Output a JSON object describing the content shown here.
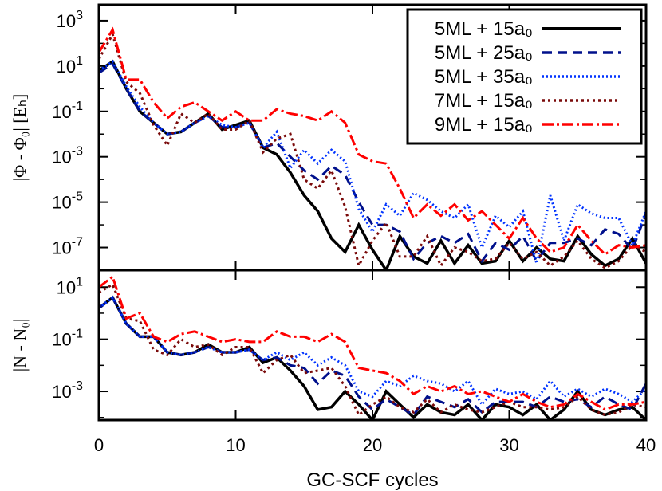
{
  "chart_data": {
    "type": "line",
    "xlabel": "GC-SCF cycles",
    "xlim": [
      0,
      40
    ],
    "xticks": [
      "0",
      "10",
      "20",
      "30",
      "40"
    ],
    "xtick_values": [
      0,
      10,
      20,
      30,
      40
    ],
    "series_styles": [
      {
        "name": "5ML + 15a₀",
        "color": "#000000",
        "dash": ""
      },
      {
        "name": "5ML + 25a₀",
        "color": "#00108c",
        "dash": "12 7"
      },
      {
        "name": "5ML + 35a₀",
        "color": "#0033ff",
        "dash": "2 3"
      },
      {
        "name": "7ML + 15a₀",
        "color": "#7a0a0a",
        "dash": "3 4"
      },
      {
        "name": "9ML + 15a₀",
        "color": "#ff0000",
        "dash": "14 4 3 4"
      }
    ],
    "legend": {
      "placement": "top-right",
      "entries": [
        "5ML + 15a₀",
        "5ML + 25a₀",
        "5ML + 35a₀",
        "7ML + 15a₀",
        "9ML + 15a₀"
      ]
    },
    "panels": [
      {
        "ylabel": "|Φ - Φ₀| [Eₕ]",
        "yscale": "log",
        "ylim_exp": [
          -8,
          3.7
        ],
        "yticks": [
          {
            "base": "10",
            "exp": "3",
            "value_exp": 3
          },
          {
            "base": "10",
            "exp": "1",
            "value_exp": 1
          },
          {
            "base": "10",
            "exp": "-1",
            "value_exp": -1
          },
          {
            "base": "10",
            "exp": "-3",
            "value_exp": -3
          },
          {
            "base": "10",
            "exp": "-5",
            "value_exp": -5
          },
          {
            "base": "10",
            "exp": "-7",
            "value_exp": -7
          }
        ],
        "series_log10": [
          [
            0.8,
            1.2,
            0.0,
            -1.0,
            -1.5,
            -2.0,
            -1.9,
            -1.5,
            -1.1,
            -1.8,
            -1.6,
            -1.4,
            -2.6,
            -2.9,
            -3.7,
            -4.7,
            -5.4,
            -6.6,
            -7.2,
            -6.0,
            -7.1,
            -8.0,
            -6.5,
            -7.4,
            -7.7,
            -6.7,
            -7.7,
            -6.9,
            -7.7,
            -7.6,
            -6.7,
            -7.6,
            -7.0,
            -7.5,
            -7.6,
            -6.5,
            -7.3,
            -7.8,
            -7.5,
            -6.6,
            -7.7
          ],
          [
            0.7,
            1.1,
            0.0,
            -1.0,
            -1.5,
            -2.0,
            -1.9,
            -1.5,
            -1.2,
            -1.7,
            -1.7,
            -1.5,
            -2.6,
            -2.4,
            -3.0,
            -3.6,
            -4.0,
            -3.4,
            -3.8,
            -5.0,
            -6.0,
            -6.0,
            -6.3,
            -7.5,
            -6.8,
            -6.5,
            -6.8,
            -6.4,
            -7.6,
            -6.8,
            -7.1,
            -6.5,
            -7.6,
            -6.8,
            -6.8,
            -6.6,
            -6.9,
            -6.2,
            -6.4,
            -7.1,
            -5.5
          ],
          [
            0.8,
            1.2,
            0.1,
            -0.8,
            -1.5,
            -2.0,
            -1.9,
            -1.5,
            -1.2,
            -1.6,
            -1.7,
            -1.5,
            -2.6,
            -1.9,
            -3.5,
            -2.7,
            -3.3,
            -2.7,
            -3.2,
            -5.3,
            -6.3,
            -5.1,
            -5.6,
            -4.6,
            -4.9,
            -5.4,
            -5.7,
            -5.1,
            -7.0,
            -5.6,
            -6.1,
            -5.4,
            -7.7,
            -4.7,
            -6.7,
            -5.1,
            -5.5,
            -5.7,
            -5.7,
            -6.9,
            -5.4
          ],
          [
            1.3,
            2.4,
            0.3,
            -0.2,
            -1.6,
            -2.5,
            -1.1,
            -1.5,
            -1.1,
            -1.8,
            -1.8,
            -1.4,
            -2.8,
            -2.2,
            -2.0,
            -4.0,
            -4.4,
            -3.6,
            -5.2,
            -7.8,
            -6.7,
            -5.9,
            -7.4,
            -7.4,
            -6.5,
            -7.8,
            -7.0,
            -7.2,
            -7.6,
            -7.5,
            -6.8,
            -7.5,
            -7.2,
            -7.8,
            -7.4,
            -6.7,
            -7.5,
            -7.9,
            -7.6,
            -6.9,
            -7.2
          ],
          [
            1.6,
            2.6,
            0.4,
            0.4,
            -0.6,
            -1.3,
            -0.8,
            -0.6,
            -1.0,
            -1.4,
            -1.0,
            -1.4,
            -1.4,
            -0.9,
            -1.1,
            -1.2,
            -1.4,
            -1.0,
            -1.5,
            -2.9,
            -3.2,
            -3.3,
            -4.4,
            -5.7,
            -5.1,
            -5.6,
            -5.1,
            -5.8,
            -5.4,
            -6.0,
            -6.6,
            -5.7,
            -6.6,
            -7.2,
            -7.0,
            -6.0,
            -6.7,
            -7.3,
            -6.9,
            -7.0,
            -6.9
          ]
        ]
      },
      {
        "ylabel": "|N - N₀|",
        "yscale": "log",
        "ylim_exp": [
          -4.1,
          1.65
        ],
        "yticks": [
          {
            "base": "10",
            "exp": "1",
            "value_exp": 1
          },
          {
            "base": "10",
            "exp": "-1",
            "value_exp": -1
          },
          {
            "base": "10",
            "exp": "-3",
            "value_exp": -3
          }
        ],
        "series_log10": [
          [
            0.2,
            0.6,
            -0.4,
            -0.9,
            -0.9,
            -1.5,
            -1.6,
            -1.5,
            -1.2,
            -1.5,
            -1.5,
            -1.3,
            -1.9,
            -1.7,
            -2.2,
            -2.8,
            -3.7,
            -3.6,
            -3.0,
            -3.5,
            -4.1,
            -3.0,
            -3.5,
            -4.0,
            -3.5,
            -3.8,
            -3.9,
            -3.5,
            -4.1,
            -3.5,
            -3.6,
            -3.9,
            -3.5,
            -4.1,
            -3.7,
            -3.0,
            -3.7,
            -3.9,
            -3.7,
            -3.6,
            -4.1
          ],
          [
            0.2,
            0.6,
            -0.4,
            -0.9,
            -0.9,
            -1.5,
            -1.6,
            -1.5,
            -1.3,
            -1.5,
            -1.5,
            -1.4,
            -1.8,
            -1.7,
            -2.0,
            -2.1,
            -2.7,
            -2.2,
            -2.4,
            -3.2,
            -3.7,
            -3.3,
            -3.6,
            -3.9,
            -3.2,
            -3.4,
            -3.6,
            -3.3,
            -3.8,
            -3.4,
            -3.4,
            -3.4,
            -3.6,
            -3.2,
            -3.4,
            -3.3,
            -3.6,
            -3.2,
            -3.5,
            -3.7,
            -2.7
          ],
          [
            0.2,
            0.6,
            -0.4,
            -0.9,
            -0.9,
            -1.5,
            -1.6,
            -1.5,
            -1.3,
            -1.5,
            -1.5,
            -1.4,
            -1.8,
            -1.5,
            -1.8,
            -1.5,
            -2.0,
            -1.7,
            -2.0,
            -3.0,
            -3.2,
            -2.6,
            -2.8,
            -2.4,
            -2.6,
            -2.7,
            -3.0,
            -2.6,
            -3.5,
            -2.9,
            -3.1,
            -3.0,
            -3.3,
            -2.6,
            -3.2,
            -2.9,
            -3.2,
            -2.9,
            -3.1,
            -3.4,
            -2.9
          ],
          [
            0.8,
            1.1,
            -0.2,
            -0.3,
            -1.4,
            -1.6,
            -1.0,
            -1.3,
            -1.2,
            -1.6,
            -1.3,
            -1.3,
            -2.3,
            -1.8,
            -1.6,
            -2.3,
            -2.2,
            -2.1,
            -2.8,
            -3.9,
            -3.5,
            -3.2,
            -3.6,
            -3.8,
            -3.3,
            -3.8,
            -3.5,
            -3.7,
            -3.8,
            -3.6,
            -3.4,
            -3.6,
            -3.6,
            -3.7,
            -3.6,
            -3.2,
            -3.7,
            -3.9,
            -3.8,
            -3.5,
            -3.6
          ],
          [
            1.0,
            1.4,
            -0.2,
            0.0,
            -0.9,
            -1.1,
            -0.8,
            -0.7,
            -0.9,
            -1.1,
            -1.0,
            -1.1,
            -1.1,
            -0.7,
            -0.9,
            -0.9,
            -1.1,
            -0.8,
            -1.1,
            -2.1,
            -2.2,
            -2.3,
            -2.6,
            -3.1,
            -2.8,
            -3.0,
            -2.8,
            -3.1,
            -3.0,
            -3.2,
            -3.4,
            -3.1,
            -3.4,
            -3.6,
            -3.5,
            -3.1,
            -3.4,
            -3.7,
            -3.5,
            -3.5,
            -3.4
          ]
        ]
      }
    ]
  }
}
